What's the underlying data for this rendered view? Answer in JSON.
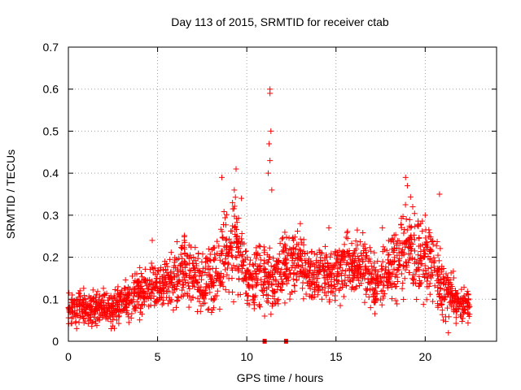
{
  "chart_data": {
    "type": "scatter",
    "title": "Day 113 of 2015, SRMTID for receiver ctab",
    "xlabel": "GPS time / hours",
    "ylabel": "SRMTID / TECUs",
    "xlim": [
      0,
      24
    ],
    "ylim": [
      0,
      0.7
    ],
    "x_ticks": [
      "0",
      "5",
      "10",
      "15",
      "20"
    ],
    "y_ticks": [
      "0",
      "0.1",
      "0.2",
      "0.3",
      "0.4",
      "0.5",
      "0.6",
      "0.7"
    ],
    "grid": true,
    "marker": "plus",
    "color": "#ff0000",
    "series": [
      {
        "name": "SRMTID",
        "envelope": {
          "x": [
            0,
            0.5,
            1,
            1.5,
            2,
            2.5,
            3,
            3.5,
            4,
            4.5,
            5,
            5.5,
            6,
            6.5,
            7,
            7.5,
            8,
            8.5,
            9,
            9.5,
            10,
            10.5,
            11,
            11.5,
            12,
            12.5,
            13,
            13.5,
            14,
            14.5,
            15,
            15.5,
            16,
            16.5,
            17,
            17.5,
            18,
            18.5,
            19,
            19.5,
            20,
            20.5,
            21,
            21.5,
            22,
            22.5
          ],
          "median": [
            0.075,
            0.08,
            0.078,
            0.075,
            0.085,
            0.07,
            0.1,
            0.11,
            0.115,
            0.12,
            0.13,
            0.14,
            0.15,
            0.17,
            0.16,
            0.13,
            0.15,
            0.17,
            0.24,
            0.22,
            0.15,
            0.16,
            0.15,
            0.14,
            0.19,
            0.18,
            0.2,
            0.16,
            0.15,
            0.16,
            0.16,
            0.18,
            0.17,
            0.18,
            0.15,
            0.13,
            0.17,
            0.19,
            0.24,
            0.2,
            0.2,
            0.18,
            0.12,
            0.11,
            0.09,
            0.09
          ],
          "spread": [
            0.03,
            0.03,
            0.03,
            0.03,
            0.03,
            0.03,
            0.035,
            0.035,
            0.04,
            0.04,
            0.045,
            0.05,
            0.05,
            0.06,
            0.055,
            0.05,
            0.055,
            0.07,
            0.08,
            0.08,
            0.05,
            0.06,
            0.06,
            0.05,
            0.06,
            0.06,
            0.06,
            0.05,
            0.05,
            0.05,
            0.05,
            0.06,
            0.05,
            0.06,
            0.05,
            0.05,
            0.06,
            0.07,
            0.08,
            0.07,
            0.07,
            0.06,
            0.05,
            0.04,
            0.03,
            0.03
          ]
        },
        "peaks": [
          {
            "x": 11.3,
            "y": 0.6
          },
          {
            "x": 11.3,
            "y": 0.59
          },
          {
            "x": 11.35,
            "y": 0.5
          },
          {
            "x": 11.25,
            "y": 0.47
          },
          {
            "x": 11.3,
            "y": 0.43
          },
          {
            "x": 11.2,
            "y": 0.4
          },
          {
            "x": 11.4,
            "y": 0.36
          },
          {
            "x": 8.6,
            "y": 0.39
          },
          {
            "x": 9.4,
            "y": 0.41
          },
          {
            "x": 9.3,
            "y": 0.36
          },
          {
            "x": 9.7,
            "y": 0.34
          },
          {
            "x": 9.2,
            "y": 0.33
          },
          {
            "x": 18.9,
            "y": 0.39
          },
          {
            "x": 19.0,
            "y": 0.37
          },
          {
            "x": 19.3,
            "y": 0.32
          },
          {
            "x": 20.8,
            "y": 0.35
          },
          {
            "x": 20.0,
            "y": 0.3
          },
          {
            "x": 13.0,
            "y": 0.28
          },
          {
            "x": 14.6,
            "y": 0.27
          },
          {
            "x": 17.6,
            "y": 0.27
          },
          {
            "x": 6.5,
            "y": 0.24
          },
          {
            "x": 4.7,
            "y": 0.24
          },
          {
            "x": 21.3,
            "y": 0.02
          },
          {
            "x": 11.0,
            "y": 0.06
          },
          {
            "x": 2.4,
            "y": 0.03
          }
        ]
      }
    ],
    "gaps": [
      {
        "x": 11.0,
        "y": 0
      },
      {
        "x": 12.2,
        "y": 0
      }
    ]
  }
}
